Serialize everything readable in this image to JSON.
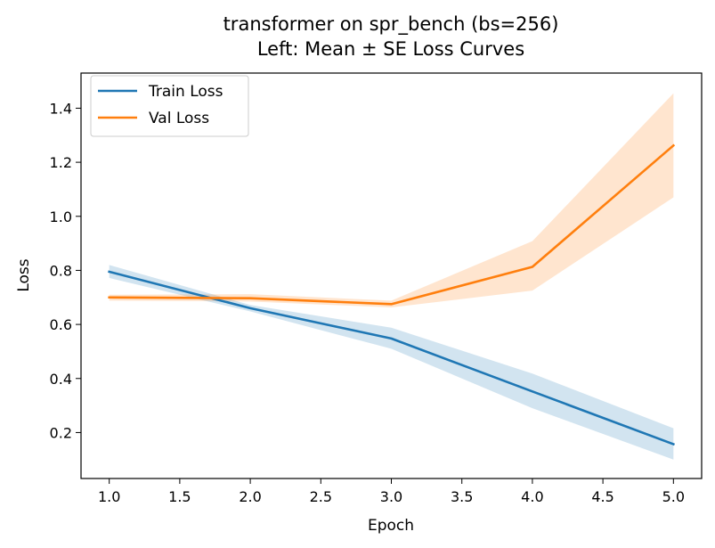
{
  "chart_data": {
    "type": "line",
    "title": "transformer on spr_bench (bs=256)",
    "subtitle": "Left: Mean ± SE Loss Curves",
    "xlabel": "Epoch",
    "ylabel": "Loss",
    "xlim": [
      0.8,
      5.2
    ],
    "ylim": [
      0.03,
      1.53
    ],
    "xticks": [
      "1.0",
      "1.5",
      "2.0",
      "2.5",
      "3.0",
      "3.5",
      "4.0",
      "4.5",
      "5.0"
    ],
    "yticks": [
      "0.2",
      "0.4",
      "0.6",
      "0.8",
      "1.0",
      "1.2",
      "1.4"
    ],
    "grid": false,
    "legend_position": "top-left",
    "x": [
      1,
      2,
      3,
      4,
      5
    ],
    "series": [
      {
        "name": "Train Loss",
        "color": "#1f77b4",
        "values": [
          0.795,
          0.66,
          0.548,
          0.352,
          0.157
        ],
        "lower": [
          0.772,
          0.648,
          0.51,
          0.29,
          0.1
        ],
        "upper": [
          0.82,
          0.672,
          0.588,
          0.418,
          0.216
        ]
      },
      {
        "name": "Val Loss",
        "color": "#ff7f0e",
        "values": [
          0.7,
          0.697,
          0.675,
          0.813,
          1.262
        ],
        "lower": [
          0.688,
          0.685,
          0.663,
          0.725,
          1.07
        ],
        "upper": [
          0.71,
          0.712,
          0.688,
          0.908,
          1.455
        ]
      }
    ]
  }
}
